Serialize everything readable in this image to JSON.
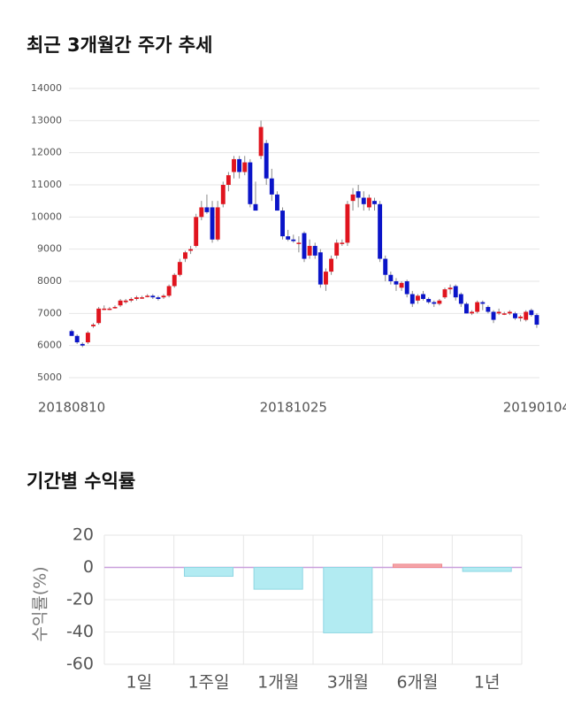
{
  "chart_data": [
    {
      "type": "candlestick",
      "title": "최근 3개월간 주가 추세",
      "categories": [
        "20180810",
        null,
        null,
        null,
        null,
        null,
        null,
        null,
        null,
        null,
        null,
        null,
        null,
        null,
        null,
        null,
        null,
        null,
        null,
        null,
        null,
        null,
        null,
        null,
        null,
        null,
        null,
        null,
        null,
        null,
        null,
        null,
        null,
        null,
        null,
        null,
        null,
        null,
        null,
        null,
        null,
        "20181025",
        null,
        null,
        null,
        null,
        null,
        null,
        null,
        null,
        null,
        null,
        null,
        null,
        null,
        null,
        null,
        null,
        null,
        null,
        null,
        null,
        null,
        null,
        null,
        null,
        null,
        null,
        null,
        null,
        null,
        null,
        null,
        null,
        null,
        null,
        null,
        null,
        null,
        null,
        null,
        null,
        null,
        null,
        null,
        null,
        "20190104"
      ],
      "open": [
        6450,
        6300,
        6050,
        6100,
        6600,
        6700,
        7150,
        7150,
        7200,
        7250,
        7350,
        7400,
        7450,
        7500,
        7550,
        7550,
        7500,
        7500,
        7550,
        7850,
        8200,
        8700,
        8950,
        9100,
        10000,
        10300,
        10300,
        9300,
        10400,
        11000,
        11400,
        11800,
        11400,
        11700,
        10400,
        11900,
        12300,
        11200,
        10700,
        10200,
        9400,
        9300,
        9200,
        9500,
        8800,
        9100,
        8900,
        7900,
        8300,
        8800,
        9200,
        9200,
        10500,
        10800,
        10600,
        10300,
        10500,
        10400,
        8700,
        8200,
        8000,
        7800,
        8000,
        7600,
        7400,
        7600,
        7450,
        7350,
        7300,
        7500,
        7750,
        7850,
        7600,
        7300,
        7000,
        7050,
        7350,
        7200,
        7050,
        7000,
        7000,
        7000,
        7000,
        6850,
        6800,
        7100,
        6950
      ],
      "high": [
        6500,
        6350,
        6100,
        6450,
        6700,
        7200,
        7250,
        7200,
        7250,
        7450,
        7450,
        7500,
        7550,
        7550,
        7600,
        7600,
        7550,
        7600,
        7900,
        8250,
        8700,
        8950,
        9100,
        10100,
        10500,
        10700,
        10500,
        10500,
        11100,
        11400,
        11900,
        11900,
        11900,
        11800,
        11100,
        13000,
        12400,
        11500,
        10800,
        10300,
        9600,
        9450,
        9400,
        9550,
        9300,
        9200,
        9000,
        8400,
        8800,
        9300,
        9300,
        10500,
        10900,
        11000,
        10800,
        10700,
        10600,
        10500,
        8800,
        8300,
        8100,
        8000,
        8050,
        7700,
        7600,
        7700,
        7500,
        7400,
        7450,
        7800,
        7900,
        7900,
        7650,
        7350,
        7100,
        7400,
        7400,
        7250,
        7100,
        7150,
        7050,
        7100,
        7050,
        6950,
        7100,
        7150,
        7000
      ],
      "low": [
        6300,
        6050,
        5950,
        6050,
        6550,
        6650,
        7100,
        7100,
        7150,
        7200,
        7300,
        7350,
        7400,
        7450,
        7500,
        7450,
        7400,
        7450,
        7500,
        7800,
        8150,
        8600,
        8850,
        9050,
        9900,
        10100,
        9200,
        9250,
        10300,
        10800,
        11200,
        11200,
        11300,
        10300,
        10200,
        11800,
        11000,
        10500,
        10200,
        9300,
        9250,
        9200,
        8900,
        8600,
        8700,
        8700,
        7800,
        7700,
        8200,
        8700,
        9100,
        9100,
        10200,
        10300,
        10200,
        10200,
        10200,
        8600,
        8000,
        7900,
        7700,
        7700,
        7500,
        7200,
        7300,
        7400,
        7300,
        7200,
        7250,
        7450,
        7600,
        7400,
        7200,
        7000,
        6950,
        7000,
        7100,
        7000,
        6700,
        6950,
        6950,
        6950,
        6800,
        6750,
        6750,
        6900,
        6550
      ],
      "close": [
        6300,
        6100,
        6000,
        6400,
        6650,
        7150,
        7150,
        7150,
        7200,
        7400,
        7400,
        7450,
        7500,
        7500,
        7550,
        7500,
        7450,
        7550,
        7850,
        8200,
        8600,
        8900,
        9000,
        10000,
        10300,
        10150,
        9300,
        10300,
        11000,
        11300,
        11800,
        11400,
        11700,
        10400,
        10200,
        12800,
        11200,
        10700,
        10200,
        9400,
        9300,
        9250,
        9200,
        8700,
        9100,
        8800,
        7900,
        8300,
        8700,
        9200,
        9200,
        10400,
        10700,
        10600,
        10400,
        10600,
        10400,
        8700,
        8200,
        8000,
        7900,
        7950,
        7600,
        7300,
        7550,
        7450,
        7350,
        7300,
        7400,
        7750,
        7800,
        7500,
        7300,
        7000,
        7050,
        7350,
        7300,
        7050,
        6800,
        7050,
        7000,
        7050,
        6850,
        6900,
        7050,
        6950,
        6650
      ],
      "up_color": "#e0141e",
      "down_color": "#0a14c8",
      "ylim": [
        5000,
        14000
      ],
      "yticks": [
        5000,
        6000,
        7000,
        8000,
        9000,
        10000,
        11000,
        12000,
        13000,
        14000
      ],
      "grid": true
    },
    {
      "type": "bar",
      "title": "기간별 수익률",
      "ylabel": "수익률(%)",
      "categories": [
        "1일",
        "1주일",
        "1개월",
        "3개월",
        "6개월",
        "1년"
      ],
      "values": [
        0,
        -5.5,
        -13.5,
        -40.5,
        2,
        -2.5
      ],
      "positive_color": "#f4a3a8",
      "negative_color": "#b2ebf2",
      "ylim": [
        -60,
        20
      ],
      "yticks": [
        -60,
        -40,
        -20,
        0,
        20
      ],
      "grid": true
    }
  ]
}
